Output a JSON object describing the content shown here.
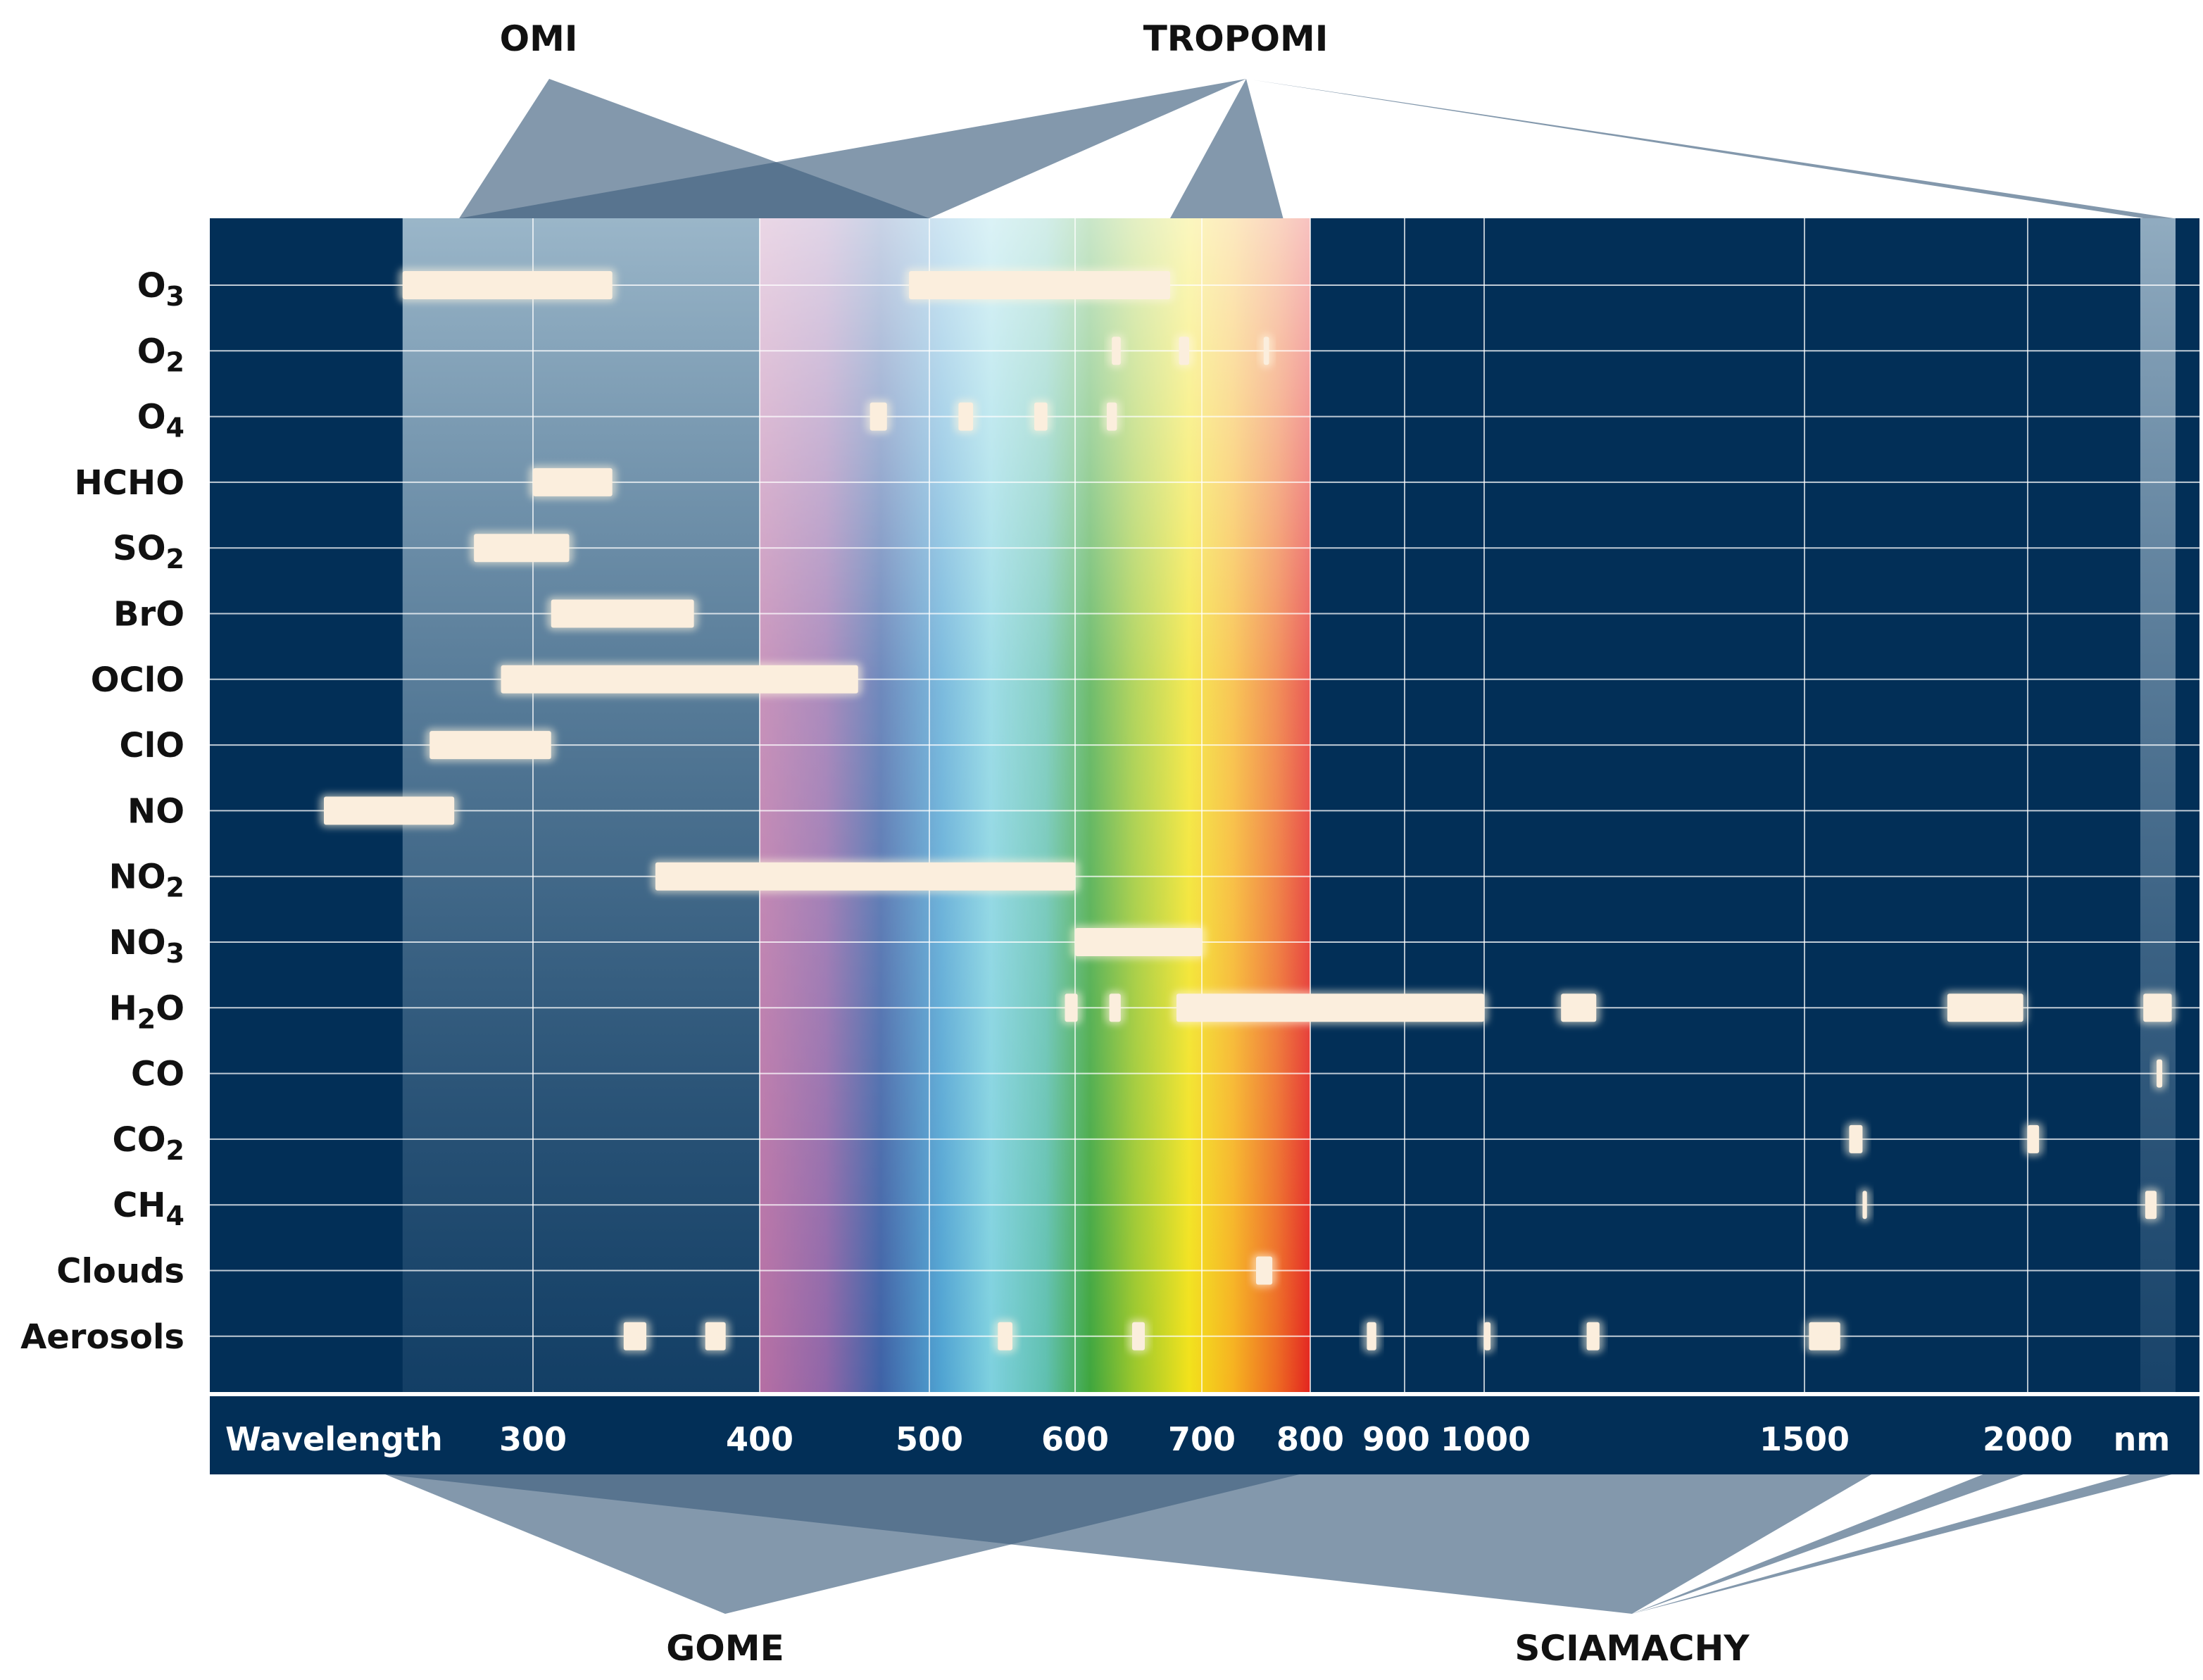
{
  "sensors": {
    "omi": "OMI",
    "tropomi": "TROPOMI",
    "gome": "GOME",
    "sciamachy": "SCIAMACHY"
  },
  "axis": {
    "wavelength_label": "Wavelength",
    "unit_label": "nm",
    "ticks": [
      {
        "value": 300,
        "label": "300"
      },
      {
        "value": 400,
        "label": "400"
      },
      {
        "value": 500,
        "label": "500"
      },
      {
        "value": 600,
        "label": "600"
      },
      {
        "value": 700,
        "label": "700"
      },
      {
        "value": 800,
        "label": "800"
      },
      {
        "value": 900,
        "label": "900"
      },
      {
        "value": 1000,
        "label": "1000"
      },
      {
        "value": 1500,
        "label": "1500"
      },
      {
        "value": 2000,
        "label": "2000"
      }
    ]
  },
  "species": [
    {
      "main": "O",
      "sub": "3",
      "tail": ""
    },
    {
      "main": "O",
      "sub": "2",
      "tail": ""
    },
    {
      "main": "O",
      "sub": "4",
      "tail": ""
    },
    {
      "main": "HCHO",
      "sub": "",
      "tail": ""
    },
    {
      "main": "SO",
      "sub": "2",
      "tail": ""
    },
    {
      "main": "BrO",
      "sub": "",
      "tail": ""
    },
    {
      "main": "OClO",
      "sub": "",
      "tail": ""
    },
    {
      "main": "ClO",
      "sub": "",
      "tail": ""
    },
    {
      "main": "NO",
      "sub": "",
      "tail": ""
    },
    {
      "main": "NO",
      "sub": "2",
      "tail": ""
    },
    {
      "main": "NO",
      "sub": "3",
      "tail": ""
    },
    {
      "main": "H",
      "sub": "2",
      "tail": "O"
    },
    {
      "main": "CO",
      "sub": "",
      "tail": ""
    },
    {
      "main": "CO",
      "sub": "2",
      "tail": ""
    },
    {
      "main": "CH",
      "sub": "4",
      "tail": ""
    },
    {
      "main": "Clouds",
      "sub": "",
      "tail": ""
    },
    {
      "main": "Aerosols",
      "sub": "",
      "tail": ""
    }
  ],
  "spectral_bands_nm": [
    [
      [
        247,
        335
      ],
      [
        488,
        675
      ]
    ],
    [
      [
        629,
        636
      ],
      [
        682,
        690
      ],
      [
        757,
        762
      ]
    ],
    [
      [
        465,
        475
      ],
      [
        520,
        530
      ],
      [
        572,
        581
      ],
      [
        625,
        633
      ]
    ],
    [
      [
        300,
        335
      ]
    ],
    [
      [
        276,
        316
      ]
    ],
    [
      [
        308,
        371
      ]
    ],
    [
      [
        287,
        458
      ]
    ],
    [
      [
        258,
        308
      ]
    ],
    [
      [
        215,
        268
      ]
    ],
    [
      [
        354,
        600
      ]
    ],
    [
      [
        600,
        700
      ]
    ],
    [
      [
        593,
        602
      ],
      [
        627,
        636
      ],
      [
        680,
        1000
      ],
      [
        1120,
        1175
      ],
      [
        1820,
        1990
      ],
      [
        2305,
        2380
      ]
    ],
    [
      [
        2340,
        2355
      ]
    ],
    [
      [
        1600,
        1630
      ],
      [
        2000,
        2030
      ]
    ],
    [
      [
        1630,
        1640
      ],
      [
        2310,
        2340
      ]
    ],
    [
      [
        750,
        765
      ]
    ],
    [
      [
        340,
        350
      ],
      [
        376,
        385
      ],
      [
        547,
        557
      ],
      [
        645,
        655
      ],
      [
        860,
        870
      ],
      [
        1000,
        1010
      ],
      [
        1160,
        1180
      ],
      [
        1510,
        1580
      ]
    ]
  ],
  "coverage_nm": {
    "omi": [
      270,
      500
    ],
    "tropomi": [
      [
        270,
        500
      ],
      [
        675,
        775
      ],
      [
        2305,
        2385
      ]
    ],
    "gome": [
      240,
      790
    ],
    "sciamachy": [
      240,
      2380
    ]
  },
  "colors": {
    "background": "#022f57",
    "band_fill": "#fbeedd",
    "sensor_fan": "#41617f",
    "axis_line": "#ffffff"
  }
}
